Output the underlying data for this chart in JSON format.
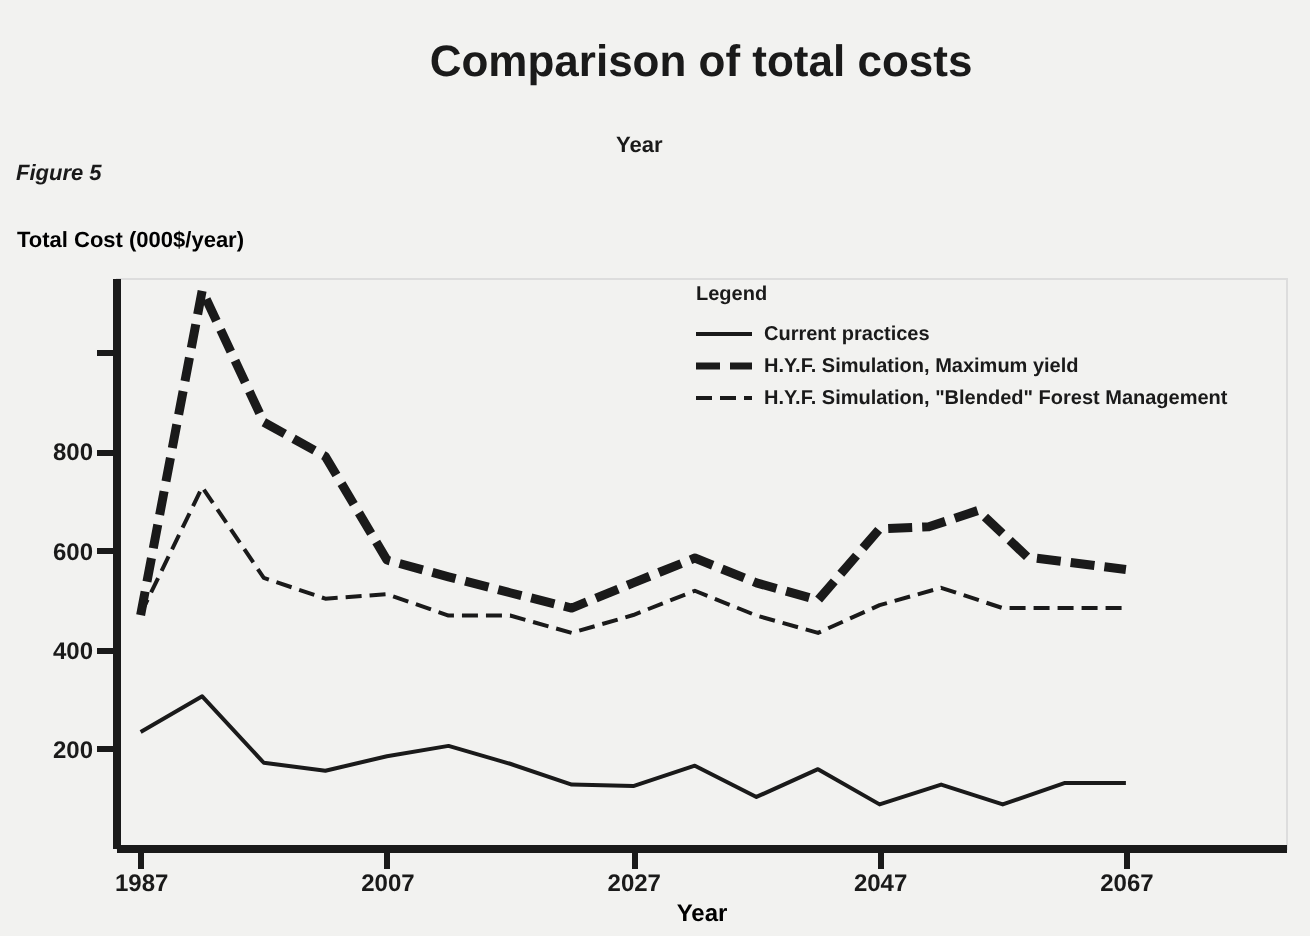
{
  "chart_data": {
    "type": "line",
    "title": "Comparison of total costs",
    "xlabel": "Year",
    "ylabel": "Total Cost (000$/year)",
    "legend_title": "Legend",
    "legend": "top right",
    "grid": false,
    "annotations": [
      "Figure 5",
      "Year"
    ],
    "xlim": [
      1985,
      2080
    ],
    "xticks": [
      1987,
      2007,
      2027,
      2047,
      2067
    ],
    "ylim": [
      0,
      1150
    ],
    "yticks": [
      200,
      400,
      600,
      800,
      {
        "value": 1000,
        "label": null
      }
    ],
    "series": [
      {
        "name": "Current practices",
        "color": "#1a1a1a",
        "line_style": "solid",
        "x": [
          1987,
          1992,
          1997,
          2002,
          2007,
          2012,
          2017,
          2022,
          2027,
          2032,
          2037,
          2042,
          2047,
          2052,
          2057,
          2062,
          2067
        ],
        "values": [
          234,
          306,
          172,
          156,
          185,
          206,
          170,
          128,
          125,
          166,
          103,
          159,
          88,
          128,
          88,
          131,
          131
        ]
      },
      {
        "name": "H.Y.F. Simulation, Maximum yield",
        "color": "#1a1a1a",
        "line_style": "dashed",
        "x": [
          1987,
          1992,
          1997,
          2002,
          2007,
          2012,
          2017,
          2022,
          2027,
          2032,
          2037,
          2042,
          2047,
          2051,
          2055,
          2059,
          2067
        ],
        "values": [
          470,
          1125,
          859,
          790,
          581,
          547,
          515,
          484,
          535,
          585,
          535,
          500,
          644,
          648,
          681,
          587,
          562
        ]
      },
      {
        "name": "H.Y.F. Simulation, \"Blended\" Forest Management",
        "color": "#1a1a1a",
        "line_style": "dashed",
        "x": [
          1987,
          1992,
          1997,
          2002,
          2007,
          2012,
          2017,
          2022,
          2027,
          2032,
          2037,
          2042,
          2047,
          2052,
          2057,
          2062,
          2067
        ],
        "values": [
          472,
          728,
          545,
          503,
          512,
          469,
          469,
          434,
          470,
          519,
          469,
          434,
          490,
          525,
          484,
          484,
          484
        ]
      }
    ]
  }
}
